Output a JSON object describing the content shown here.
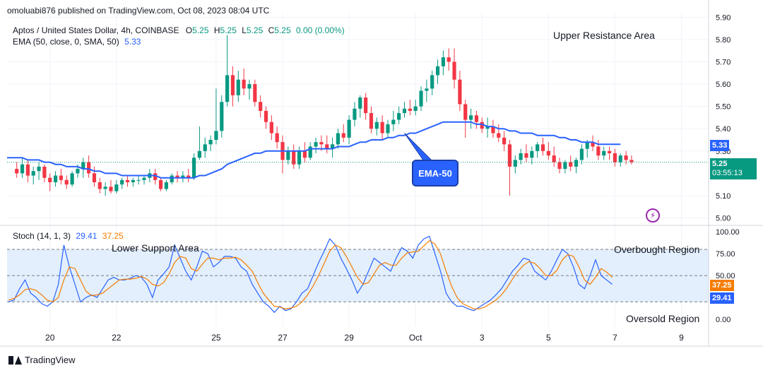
{
  "header": {
    "publish_text": "omoluabi876 published on TradingView.com, Oct 08, 2023 08:04 UTC"
  },
  "legend": {
    "symbol": "Aptos / United States Dollar, 4h, COINBASE",
    "o_label": "O",
    "o_val": "5.25",
    "h_label": "H",
    "h_val": "5.25",
    "l_label": "L",
    "l_val": "5.25",
    "c_label": "C",
    "c_val": "5.25",
    "change": "0.00 (0.00%)",
    "ema_label": "EMA (50, close, 0, SMA, 50)",
    "ema_val": "5.33",
    "stoch_label": "Stoch (14, 1, 3)",
    "stoch_k": "29.41",
    "stoch_d": "37.25"
  },
  "annotations": {
    "upper_resistance": "Upper Resistance Area",
    "lower_support": "Lower Support Area",
    "ema_callout": "EMA-50",
    "overbought": "Overbought Region",
    "oversold": "Oversold Region"
  },
  "badges": {
    "ema_price": "5.33",
    "last_price": "5.25",
    "countdown": "03:55:13",
    "stoch_d": "37.25",
    "stoch_k": "29.41"
  },
  "colors": {
    "up": "#089981",
    "down": "#f23645",
    "ema": "#2962ff",
    "stoch_k": "#2962ff",
    "stoch_d": "#f57c00",
    "stoch_band": "#e3effd"
  },
  "footer": {
    "brand": "TradingView"
  },
  "chart_data": [
    {
      "type": "candlestick",
      "title": "Aptos / United States Dollar, 4h, COINBASE",
      "y_ticks": [
        "5.90",
        "5.80",
        "5.70",
        "5.60",
        "5.50",
        "5.40",
        "5.30",
        "5.10",
        "5.00"
      ],
      "ylim": [
        4.97,
        5.92
      ],
      "x_tick_labels": [
        {
          "label": "20",
          "index": 6
        },
        {
          "label": "22",
          "index": 18
        },
        {
          "label": "25",
          "index": 36
        },
        {
          "label": "27",
          "index": 48
        },
        {
          "label": "29",
          "index": 60
        },
        {
          "label": "Oct",
          "index": 72
        },
        {
          "label": "3",
          "index": 84
        },
        {
          "label": "5",
          "index": 96
        },
        {
          "label": "7",
          "index": 108
        },
        {
          "label": "9",
          "index": 120
        }
      ],
      "ohlc": [
        [
          5.22,
          5.25,
          5.18,
          5.2
        ],
        [
          5.2,
          5.27,
          5.18,
          5.24
        ],
        [
          5.24,
          5.26,
          5.16,
          5.19
        ],
        [
          5.19,
          5.23,
          5.15,
          5.21
        ],
        [
          5.21,
          5.25,
          5.17,
          5.23
        ],
        [
          5.23,
          5.24,
          5.16,
          5.18
        ],
        [
          5.18,
          5.2,
          5.12,
          5.16
        ],
        [
          5.16,
          5.21,
          5.14,
          5.19
        ],
        [
          5.19,
          5.22,
          5.15,
          5.17
        ],
        [
          5.17,
          5.19,
          5.13,
          5.15
        ],
        [
          5.15,
          5.21,
          5.14,
          5.2
        ],
        [
          5.2,
          5.24,
          5.18,
          5.22
        ],
        [
          5.22,
          5.27,
          5.18,
          5.25
        ],
        [
          5.25,
          5.28,
          5.18,
          5.2
        ],
        [
          5.2,
          5.23,
          5.14,
          5.16
        ],
        [
          5.16,
          5.18,
          5.11,
          5.13
        ],
        [
          5.13,
          5.16,
          5.1,
          5.14
        ],
        [
          5.14,
          5.17,
          5.11,
          5.12
        ],
        [
          5.12,
          5.17,
          5.11,
          5.15
        ],
        [
          5.15,
          5.18,
          5.13,
          5.17
        ],
        [
          5.17,
          5.19,
          5.14,
          5.16
        ],
        [
          5.16,
          5.18,
          5.14,
          5.17
        ],
        [
          5.17,
          5.19,
          5.15,
          5.17
        ],
        [
          5.17,
          5.19,
          5.15,
          5.18
        ],
        [
          5.18,
          5.22,
          5.16,
          5.2
        ],
        [
          5.2,
          5.22,
          5.15,
          5.17
        ],
        [
          5.17,
          5.18,
          5.12,
          5.13
        ],
        [
          5.13,
          5.17,
          5.12,
          5.16
        ],
        [
          5.16,
          5.2,
          5.15,
          5.19
        ],
        [
          5.19,
          5.21,
          5.16,
          5.18
        ],
        [
          5.18,
          5.21,
          5.16,
          5.19
        ],
        [
          5.19,
          5.22,
          5.16,
          5.18
        ],
        [
          5.18,
          5.29,
          5.17,
          5.27
        ],
        [
          5.27,
          5.41,
          5.26,
          5.3
        ],
        [
          5.3,
          5.36,
          5.27,
          5.33
        ],
        [
          5.33,
          5.37,
          5.3,
          5.35
        ],
        [
          5.35,
          5.58,
          5.33,
          5.39
        ],
        [
          5.39,
          5.55,
          5.36,
          5.52
        ],
        [
          5.52,
          5.82,
          5.5,
          5.64
        ],
        [
          5.64,
          5.68,
          5.5,
          5.55
        ],
        [
          5.55,
          5.66,
          5.52,
          5.62
        ],
        [
          5.62,
          5.67,
          5.55,
          5.58
        ],
        [
          5.58,
          5.62,
          5.53,
          5.6
        ],
        [
          5.6,
          5.62,
          5.5,
          5.52
        ],
        [
          5.52,
          5.55,
          5.45,
          5.48
        ],
        [
          5.48,
          5.5,
          5.4,
          5.43
        ],
        [
          5.43,
          5.46,
          5.35,
          5.38
        ],
        [
          5.38,
          5.41,
          5.31,
          5.34
        ],
        [
          5.34,
          5.37,
          5.2,
          5.26
        ],
        [
          5.26,
          5.32,
          5.24,
          5.3
        ],
        [
          5.3,
          5.33,
          5.22,
          5.24
        ],
        [
          5.24,
          5.32,
          5.22,
          5.3
        ],
        [
          5.3,
          5.34,
          5.25,
          5.27
        ],
        [
          5.27,
          5.34,
          5.26,
          5.32
        ],
        [
          5.32,
          5.36,
          5.29,
          5.34
        ],
        [
          5.34,
          5.37,
          5.3,
          5.33
        ],
        [
          5.33,
          5.37,
          5.29,
          5.31
        ],
        [
          5.31,
          5.36,
          5.27,
          5.33
        ],
        [
          5.33,
          5.4,
          5.31,
          5.38
        ],
        [
          5.38,
          5.42,
          5.34,
          5.36
        ],
        [
          5.36,
          5.46,
          5.33,
          5.44
        ],
        [
          5.44,
          5.52,
          5.41,
          5.49
        ],
        [
          5.49,
          5.55,
          5.45,
          5.54
        ],
        [
          5.54,
          5.56,
          5.44,
          5.47
        ],
        [
          5.47,
          5.5,
          5.38,
          5.4
        ],
        [
          5.4,
          5.45,
          5.37,
          5.43
        ],
        [
          5.43,
          5.46,
          5.35,
          5.38
        ],
        [
          5.38,
          5.44,
          5.36,
          5.42
        ],
        [
          5.42,
          5.48,
          5.39,
          5.44
        ],
        [
          5.44,
          5.5,
          5.42,
          5.47
        ],
        [
          5.47,
          5.52,
          5.45,
          5.49
        ],
        [
          5.49,
          5.53,
          5.46,
          5.48
        ],
        [
          5.48,
          5.53,
          5.46,
          5.5
        ],
        [
          5.5,
          5.59,
          5.48,
          5.57
        ],
        [
          5.57,
          5.62,
          5.52,
          5.58
        ],
        [
          5.58,
          5.66,
          5.55,
          5.64
        ],
        [
          5.64,
          5.71,
          5.6,
          5.68
        ],
        [
          5.68,
          5.75,
          5.64,
          5.72
        ],
        [
          5.72,
          5.76,
          5.66,
          5.7
        ],
        [
          5.7,
          5.76,
          5.58,
          5.62
        ],
        [
          5.62,
          5.66,
          5.48,
          5.51
        ],
        [
          5.51,
          5.53,
          5.36,
          5.44
        ],
        [
          5.44,
          5.49,
          5.4,
          5.46
        ],
        [
          5.46,
          5.48,
          5.4,
          5.43
        ],
        [
          5.43,
          5.45,
          5.38,
          5.4
        ],
        [
          5.4,
          5.45,
          5.36,
          5.41
        ],
        [
          5.41,
          5.44,
          5.36,
          5.38
        ],
        [
          5.38,
          5.42,
          5.34,
          5.36
        ],
        [
          5.36,
          5.39,
          5.3,
          5.33
        ],
        [
          5.33,
          5.35,
          5.1,
          5.23
        ],
        [
          5.23,
          5.28,
          5.2,
          5.26
        ],
        [
          5.26,
          5.31,
          5.24,
          5.29
        ],
        [
          5.29,
          5.33,
          5.25,
          5.27
        ],
        [
          5.27,
          5.32,
          5.24,
          5.3
        ],
        [
          5.3,
          5.34,
          5.27,
          5.33
        ],
        [
          5.33,
          5.36,
          5.28,
          5.3
        ],
        [
          5.3,
          5.34,
          5.26,
          5.28
        ],
        [
          5.28,
          5.32,
          5.23,
          5.25
        ],
        [
          5.25,
          5.27,
          5.2,
          5.22
        ],
        [
          5.22,
          5.26,
          5.2,
          5.25
        ],
        [
          5.25,
          5.28,
          5.21,
          5.23
        ],
        [
          5.23,
          5.27,
          5.2,
          5.26
        ],
        [
          5.26,
          5.33,
          5.24,
          5.31
        ],
        [
          5.31,
          5.35,
          5.27,
          5.34
        ],
        [
          5.34,
          5.37,
          5.3,
          5.32
        ],
        [
          5.32,
          5.35,
          5.26,
          5.28
        ],
        [
          5.28,
          5.32,
          5.26,
          5.3
        ],
        [
          5.3,
          5.32,
          5.26,
          5.29
        ],
        [
          5.29,
          5.31,
          5.23,
          5.25
        ],
        [
          5.25,
          5.29,
          5.23,
          5.28
        ],
        [
          5.28,
          5.3,
          5.24,
          5.26
        ],
        [
          5.26,
          5.28,
          5.24,
          5.25
        ]
      ],
      "ema50": {
        "label": "EMA-50",
        "values": [
          5.27,
          5.27,
          5.26,
          5.26,
          5.26,
          5.25,
          5.25,
          5.24,
          5.24,
          5.23,
          5.23,
          5.23,
          5.22,
          5.22,
          5.21,
          5.21,
          5.2,
          5.2,
          5.2,
          5.19,
          5.19,
          5.19,
          5.19,
          5.19,
          5.19,
          5.19,
          5.18,
          5.18,
          5.18,
          5.18,
          5.18,
          5.18,
          5.18,
          5.19,
          5.19,
          5.2,
          5.21,
          5.22,
          5.24,
          5.25,
          5.26,
          5.27,
          5.28,
          5.29,
          5.29,
          5.3,
          5.3,
          5.3,
          5.3,
          5.3,
          5.3,
          5.3,
          5.3,
          5.31,
          5.31,
          5.31,
          5.31,
          5.31,
          5.32,
          5.32,
          5.32,
          5.33,
          5.34,
          5.34,
          5.35,
          5.35,
          5.35,
          5.36,
          5.36,
          5.37,
          5.37,
          5.38,
          5.38,
          5.39,
          5.4,
          5.41,
          5.42,
          5.43,
          5.43,
          5.43,
          5.43,
          5.43,
          5.43,
          5.42,
          5.42,
          5.41,
          5.41,
          5.4,
          5.4,
          5.39,
          5.39,
          5.38,
          5.38,
          5.38,
          5.37,
          5.37,
          5.37,
          5.37,
          5.36,
          5.36,
          5.35,
          5.35,
          5.34,
          5.34,
          5.34,
          5.33,
          5.33,
          5.33,
          5.33,
          5.33
        ]
      }
    },
    {
      "type": "line",
      "title": "Stoch (14, 1, 3)",
      "y_ticks": [
        "100.00",
        "75.00",
        "50.00",
        "0.00"
      ],
      "ylim": [
        -8,
        105
      ],
      "levels": [
        80,
        50,
        20
      ],
      "series": [
        {
          "name": "K",
          "values": [
            20,
            22,
            35,
            45,
            30,
            25,
            18,
            15,
            20,
            40,
            85,
            60,
            40,
            20,
            25,
            28,
            25,
            35,
            45,
            48,
            45,
            45,
            47,
            50,
            48,
            40,
            25,
            45,
            52,
            60,
            85,
            70,
            55,
            45,
            60,
            78,
            75,
            60,
            65,
            72,
            72,
            70,
            60,
            55,
            40,
            30,
            20,
            15,
            8,
            15,
            10,
            12,
            20,
            30,
            35,
            50,
            65,
            78,
            92,
            85,
            70,
            58,
            45,
            30,
            40,
            55,
            70,
            65,
            60,
            55,
            70,
            82,
            78,
            70,
            85,
            92,
            95,
            75,
            55,
            30,
            20,
            15,
            15,
            12,
            10,
            14,
            18,
            22,
            28,
            35,
            45,
            55,
            62,
            70,
            68,
            55,
            50,
            45,
            55,
            68,
            80,
            75,
            60,
            40,
            35,
            50,
            68,
            50,
            45,
            40
          ]
        },
        {
          "name": "D",
          "values": [
            22,
            24,
            28,
            34,
            35,
            33,
            28,
            22,
            20,
            25,
            45,
            60,
            58,
            45,
            32,
            27,
            28,
            30,
            35,
            40,
            45,
            46,
            46,
            47,
            49,
            46,
            40,
            38,
            42,
            52,
            65,
            72,
            70,
            58,
            55,
            63,
            70,
            70,
            68,
            70,
            70,
            71,
            68,
            62,
            55,
            42,
            30,
            22,
            15,
            14,
            12,
            13,
            15,
            20,
            28,
            38,
            50,
            64,
            78,
            85,
            82,
            72,
            60,
            48,
            40,
            42,
            52,
            62,
            65,
            62,
            62,
            70,
            76,
            77,
            78,
            84,
            90,
            86,
            75,
            55,
            38,
            25,
            18,
            15,
            12,
            12,
            14,
            18,
            22,
            28,
            36,
            46,
            55,
            62,
            66,
            64,
            58,
            50,
            50,
            56,
            68,
            74,
            72,
            60,
            45,
            40,
            48,
            58,
            54,
            48
          ]
        }
      ]
    }
  ]
}
